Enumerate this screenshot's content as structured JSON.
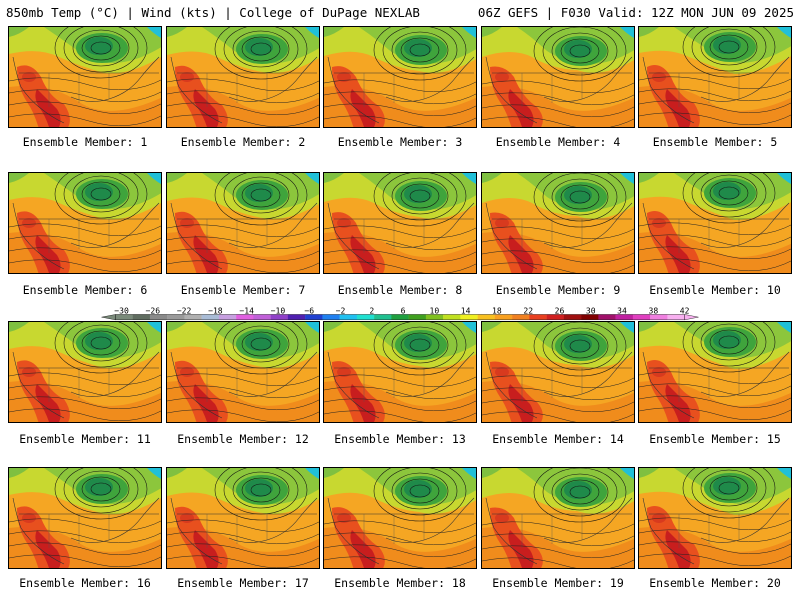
{
  "header": {
    "left": "850mb Temp (°C) | Wind (kts) | College of DuPage NEXLAB",
    "right": "06Z GEFS | F030 Valid: 12Z MON JUN 09 2025"
  },
  "members": [
    {
      "n": 1,
      "label": "Ensemble Member: 1"
    },
    {
      "n": 2,
      "label": "Ensemble Member: 2"
    },
    {
      "n": 3,
      "label": "Ensemble Member: 3"
    },
    {
      "n": 4,
      "label": "Ensemble Member: 4"
    },
    {
      "n": 5,
      "label": "Ensemble Member: 5"
    },
    {
      "n": 6,
      "label": "Ensemble Member: 6"
    },
    {
      "n": 7,
      "label": "Ensemble Member: 7"
    },
    {
      "n": 8,
      "label": "Ensemble Member: 8"
    },
    {
      "n": 9,
      "label": "Ensemble Member: 9"
    },
    {
      "n": 10,
      "label": "Ensemble Member: 10"
    },
    {
      "n": 11,
      "label": "Ensemble Member: 11"
    },
    {
      "n": 12,
      "label": "Ensemble Member: 12"
    },
    {
      "n": 13,
      "label": "Ensemble Member: 13"
    },
    {
      "n": 14,
      "label": "Ensemble Member: 14"
    },
    {
      "n": 15,
      "label": "Ensemble Member: 15"
    },
    {
      "n": 16,
      "label": "Ensemble Member: 16"
    },
    {
      "n": 17,
      "label": "Ensemble Member: 17"
    },
    {
      "n": 18,
      "label": "Ensemble Member: 18"
    },
    {
      "n": 19,
      "label": "Ensemble Member: 19"
    },
    {
      "n": 20,
      "label": "Ensemble Member: 20"
    }
  ],
  "colorbar": {
    "ticks": [
      "-30",
      "-26",
      "-22",
      "-18",
      "-14",
      "-10",
      "-6",
      "-2",
      "2",
      "6",
      "10",
      "14",
      "18",
      "22",
      "26",
      "30",
      "34",
      "38",
      "42"
    ],
    "colors": [
      "#7a8a7a",
      "#606d60",
      "#8a8a8a",
      "#9a9a9a",
      "#b0b0b0",
      "#a9bcd6",
      "#c7a0e0",
      "#e060e0",
      "#c060d8",
      "#9040c8",
      "#5020b0",
      "#2040d0",
      "#2080f0",
      "#20c0f0",
      "#20e0d0",
      "#20c090",
      "#20a040",
      "#40a020",
      "#80c020",
      "#c0e020",
      "#f0f020",
      "#f8c020",
      "#f8a020",
      "#f08020",
      "#e84020",
      "#d02020",
      "#a01010",
      "#800000",
      "#a0106a",
      "#c020a0",
      "#e040c0",
      "#f080e0",
      "#f8b0f0"
    ]
  }
}
